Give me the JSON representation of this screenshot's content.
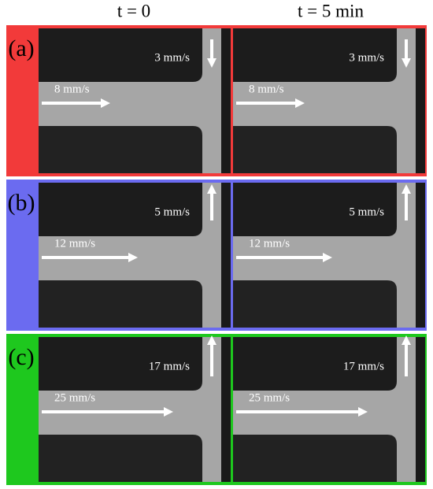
{
  "columns": [
    "t = 0",
    "t = 5 min"
  ],
  "rows": [
    {
      "label": "(a)",
      "color": "#f23a3a",
      "flow": "down",
      "panels": [
        {
          "vertical": "3 mm/s",
          "horizontal": "8 mm/s"
        },
        {
          "vertical": "3 mm/s",
          "horizontal": "8 mm/s"
        }
      ]
    },
    {
      "label": "(b)",
      "color": "#6b6bf0",
      "flow": "up",
      "panels": [
        {
          "vertical": "5 mm/s",
          "horizontal": "12 mm/s"
        },
        {
          "vertical": "5 mm/s",
          "horizontal": "12 mm/s"
        }
      ]
    },
    {
      "label": "(c)",
      "color": "#1ec81e",
      "flow": "up",
      "panels": [
        {
          "vertical": "17 mm/s",
          "horizontal": "25 mm/s"
        },
        {
          "vertical": "17 mm/s",
          "horizontal": "25 mm/s"
        }
      ]
    }
  ]
}
